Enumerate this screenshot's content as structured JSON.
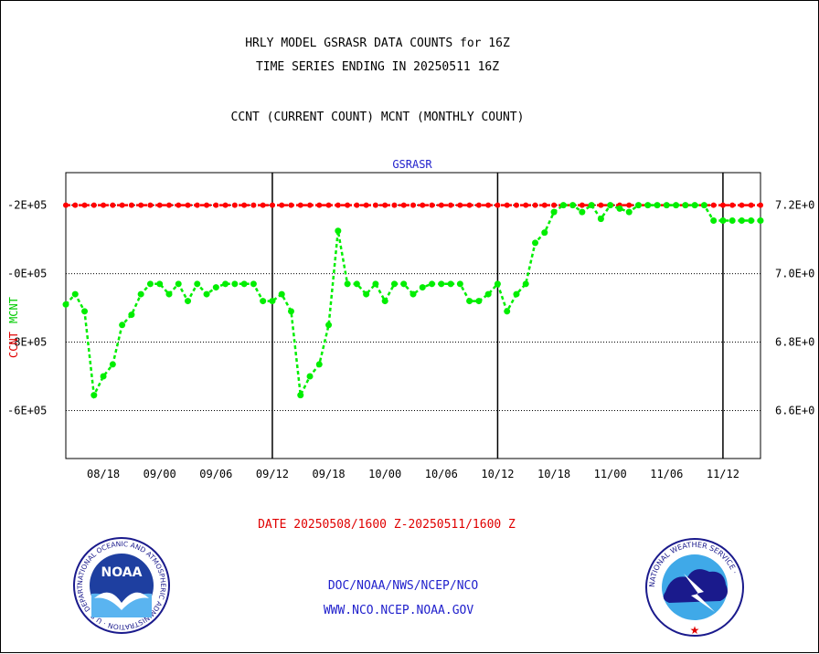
{
  "header": {
    "title_line1": "HRLY MODEL GSRASR DATA COUNTS for 16Z",
    "title_line2": "TIME SERIES ENDING IN 20250511 16Z",
    "title_line3": "CCNT (CURRENT COUNT) MCNT (MONTHLY COUNT)"
  },
  "footer": {
    "date_range": "DATE 20250508/1600 Z-20250511/1600 Z",
    "org_line": "DOC/NOAA/NWS/NCEP/NCO",
    "url_line": "WWW.NCO.NCEP.NOAA.GOV"
  },
  "logos": {
    "noaa_text": "NOAA",
    "noaa_ring": "NATIONAL OCEANIC AND ATMOSPHERIC ADMINISTRATION · U.S. DEPARTMENT OF COMMERCE ·",
    "nws_ring": "NATIONAL WEATHER SERVICE ·"
  },
  "chart_data": {
    "type": "line",
    "title": "GSRASR",
    "xlabel": "",
    "ylabel_left_ccnt": "CCNT",
    "ylabel_left_mcnt": "MCNT",
    "x_tick_labels": [
      "08/18",
      "09/00",
      "09/06",
      "09/12",
      "09/18",
      "10/00",
      "10/06",
      "10/12",
      "10/18",
      "11/00",
      "11/06",
      "11/12"
    ],
    "x_tick_hours": [
      -66,
      -60,
      -54,
      -48,
      -42,
      -36,
      -30,
      -24,
      -18,
      -12,
      -6,
      0
    ],
    "x_range_hours": [
      -70,
      4
    ],
    "day_boundaries_hours": [
      -48,
      -24,
      0
    ],
    "y_left_ticks": [
      "-6E+05",
      "-8E+05",
      "-0E+05",
      "-2E+05"
    ],
    "y_right_ticks": [
      "6.6E+0",
      "6.8E+0",
      "7.0E+0",
      "7.2E+0"
    ],
    "y_tick_values": [
      660000,
      680000,
      700000,
      720000
    ],
    "ylim": [
      646000,
      729500
    ],
    "grid": "horizontal dotted",
    "series": [
      {
        "name": "CCNT",
        "color": "#ff0000",
        "x": [
          -70,
          -69,
          -68,
          -67,
          -66,
          -65,
          -64,
          -63,
          -62,
          -61,
          -60,
          -59,
          -58,
          -57,
          -56,
          -55,
          -54,
          -53,
          -52,
          -51,
          -50,
          -49,
          -48,
          -47,
          -46,
          -45,
          -44,
          -43,
          -42,
          -41,
          -40,
          -39,
          -38,
          -37,
          -36,
          -35,
          -34,
          -33,
          -32,
          -31,
          -30,
          -29,
          -28,
          -27,
          -26,
          -25,
          -24,
          -23,
          -22,
          -21,
          -20,
          -19,
          -18,
          -17,
          -16,
          -15,
          -14,
          -13,
          -12,
          -11,
          -10,
          -9,
          -8,
          -7,
          -6,
          -5,
          -4,
          -3,
          -2,
          -1,
          0,
          1,
          2,
          3,
          4
        ],
        "values": [
          720000,
          720000,
          720000,
          720000,
          720000,
          720000,
          720000,
          720000,
          720000,
          720000,
          720000,
          720000,
          720000,
          720000,
          720000,
          720000,
          720000,
          720000,
          720000,
          720000,
          720000,
          720000,
          720000,
          720000,
          720000,
          720000,
          720000,
          720000,
          720000,
          720000,
          720000,
          720000,
          720000,
          720000,
          720000,
          720000,
          720000,
          720000,
          720000,
          720000,
          720000,
          720000,
          720000,
          720000,
          720000,
          720000,
          720000,
          720000,
          720000,
          720000,
          720000,
          720000,
          720000,
          720000,
          720000,
          720000,
          720000,
          720000,
          720000,
          720000,
          720000,
          720000,
          720000,
          720000,
          720000,
          720000,
          720000,
          720000,
          720000,
          720000,
          720000,
          720000,
          720000,
          720000,
          720000
        ]
      },
      {
        "name": "MCNT",
        "color": "#00ee00",
        "x": [
          -70,
          -69,
          -68,
          -67,
          -66,
          -65,
          -64,
          -63,
          -62,
          -61,
          -60,
          -59,
          -58,
          -57,
          -56,
          -55,
          -54,
          -53,
          -52,
          -51,
          -50,
          -49,
          -48,
          -47,
          -46,
          -45,
          -44,
          -43,
          -42,
          -41,
          -40,
          -39,
          -38,
          -37,
          -36,
          -35,
          -34,
          -33,
          -32,
          -31,
          -30,
          -29,
          -28,
          -27,
          -26,
          -25,
          -24,
          -23,
          -22,
          -21,
          -20,
          -19,
          -18,
          -17,
          -16,
          -15,
          -14,
          -13,
          -12,
          -11,
          -10,
          -9,
          -8,
          -7,
          -6,
          -5,
          -4,
          -3,
          -2,
          -1,
          0,
          1,
          2,
          3,
          4
        ],
        "values": [
          691000,
          694000,
          689000,
          664500,
          670000,
          673500,
          685000,
          688000,
          694000,
          697000,
          697000,
          694000,
          697000,
          692000,
          697000,
          694000,
          696000,
          697000,
          697000,
          697000,
          697000,
          692000,
          692000,
          694000,
          689000,
          664500,
          670000,
          673500,
          685000,
          712500,
          697000,
          697000,
          694000,
          697000,
          692000,
          697000,
          697000,
          694000,
          696000,
          697000,
          697000,
          697000,
          697000,
          692000,
          692000,
          694000,
          697000,
          689000,
          694000,
          697000,
          709000,
          712000,
          718000,
          720000,
          720000,
          718000,
          720000,
          716000,
          720000,
          719000,
          718000,
          720000,
          720000,
          720000,
          720000,
          720000,
          720000,
          720000,
          720000,
          715500,
          715500,
          715500,
          715500,
          715500,
          715500
        ]
      }
    ]
  }
}
